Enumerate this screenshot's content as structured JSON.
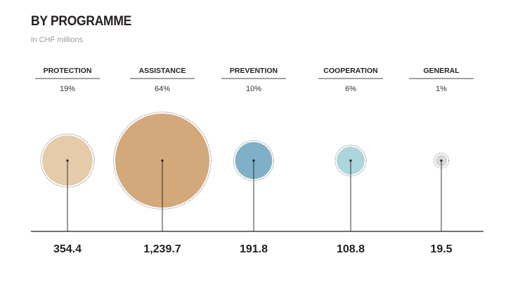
{
  "header": {
    "title": "BY PROGRAMME",
    "subtitle": "in CHF millions"
  },
  "colors": {
    "PROTECTION": "#e6cbaa",
    "ASSISTANCE": "#d3a87a",
    "PREVENTION": "#7fb0c8",
    "COOPERATION": "#add5dc",
    "GENERAL": "#d8d8d8",
    "axis": "#231f20"
  },
  "chart_data": {
    "type": "bubble",
    "title": "BY PROGRAMME",
    "subtitle": "in CHF millions",
    "categories": [
      "PROTECTION",
      "ASSISTANCE",
      "PREVENTION",
      "COOPERATION",
      "GENERAL"
    ],
    "percentages": [
      "19%",
      "64%",
      "10%",
      "6%",
      "1%"
    ],
    "value_labels": [
      "354.4",
      "1,239.7",
      "191.8",
      "108.8",
      "19.5"
    ],
    "values": [
      354.4,
      1239.7,
      191.8,
      108.8,
      19.5
    ]
  }
}
